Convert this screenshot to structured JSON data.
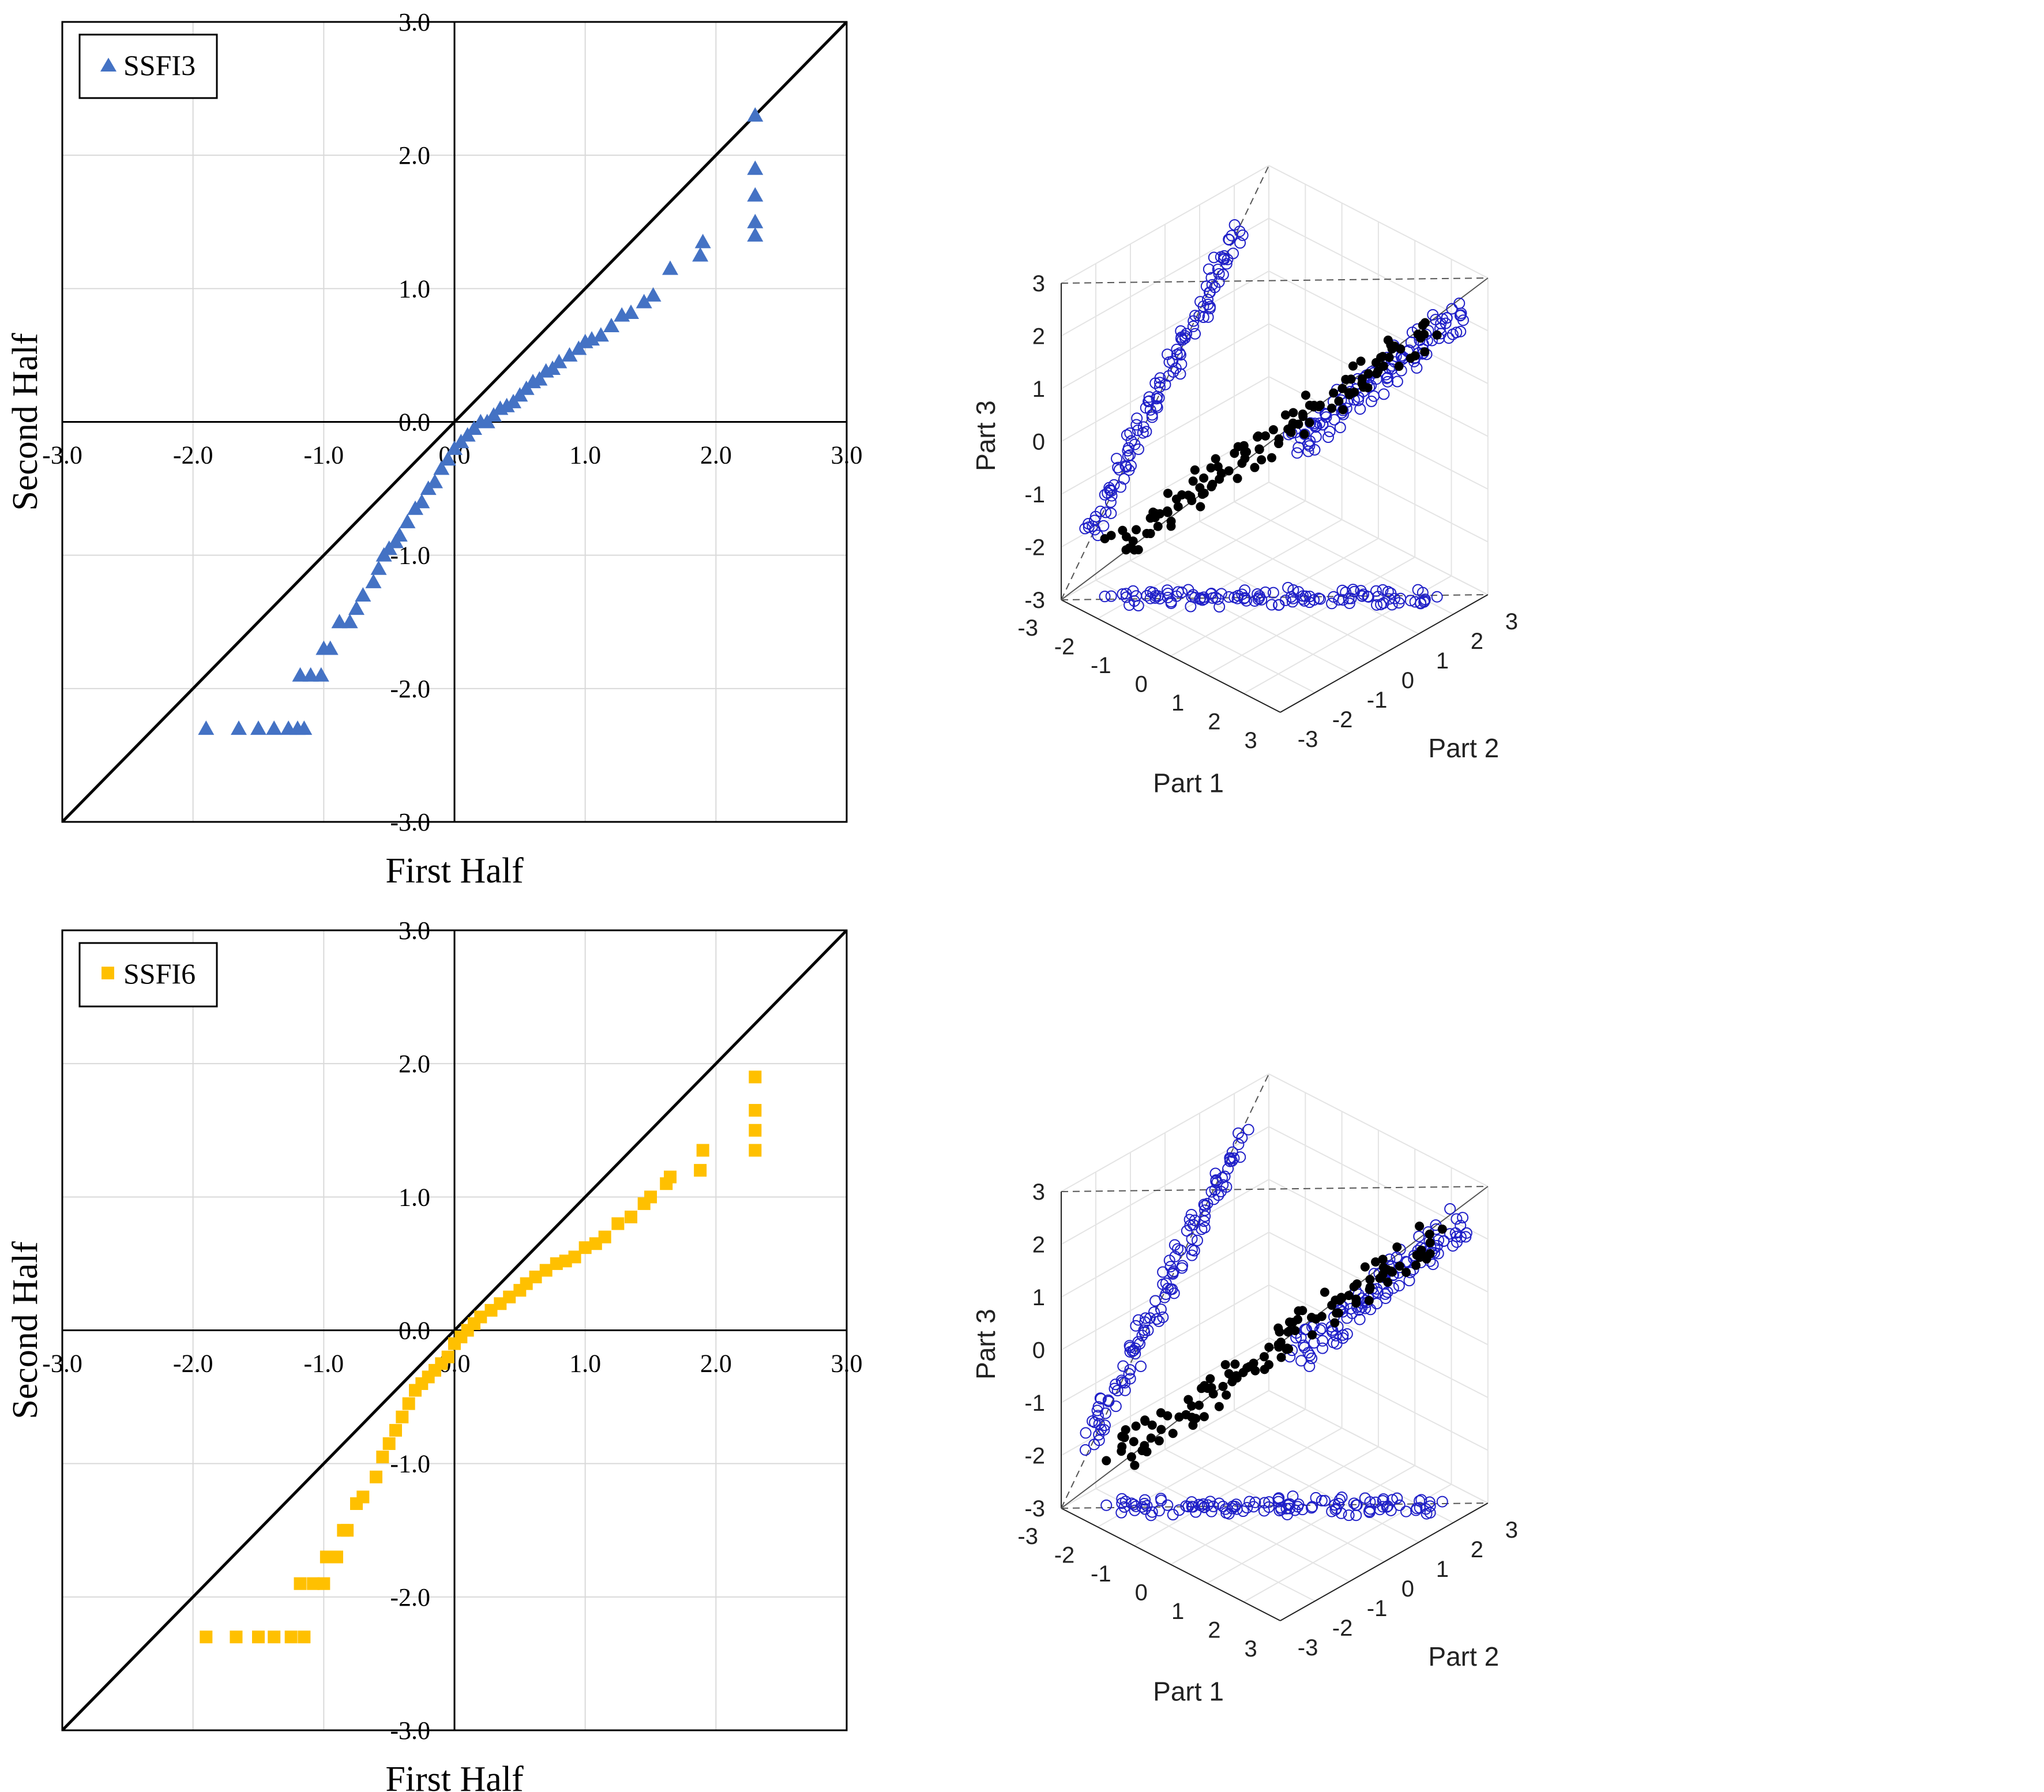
{
  "colors": {
    "ssfi3": "#4472C4",
    "ssfi6": "#FFC000",
    "diagonal": "#000000",
    "grid": "#d9d9d9",
    "circles": "#2020c8",
    "dots": "#000000"
  },
  "chart_data": [
    {
      "type": "scatter",
      "title": "",
      "legend": "SSFI3",
      "legend_position": "top-left",
      "marker": "triangle",
      "xlabel": "First Half",
      "ylabel": "Second Half",
      "xlim": [
        -3.0,
        3.0
      ],
      "ylim": [
        -3.0,
        3.0
      ],
      "xticks": [
        "-3.0",
        "-2.0",
        "-1.0",
        "0.0",
        "1.0",
        "2.0",
        "3.0"
      ],
      "yticks": [
        "3.0",
        "2.0",
        "1.0",
        "0.0",
        "-1.0",
        "-2.0",
        "-3.0"
      ],
      "reference_line": "y = x",
      "x": [
        -1.9,
        -1.65,
        -1.5,
        -1.38,
        -1.27,
        -1.2,
        -1.15,
        -1.18,
        -1.1,
        -1.02,
        -1.0,
        -0.95,
        -0.88,
        -0.8,
        -0.75,
        -0.7,
        -0.62,
        -0.58,
        -0.54,
        -0.5,
        -0.45,
        -0.42,
        -0.36,
        -0.3,
        -0.25,
        -0.2,
        -0.15,
        -0.1,
        -0.05,
        0.0,
        0.05,
        0.1,
        0.15,
        0.2,
        0.25,
        0.3,
        0.35,
        0.4,
        0.45,
        0.5,
        0.55,
        0.6,
        0.65,
        0.7,
        0.75,
        0.8,
        0.88,
        0.95,
        1.0,
        1.05,
        1.12,
        1.2,
        1.28,
        1.35,
        1.45,
        1.52,
        1.65,
        1.88,
        1.9,
        2.3,
        2.3,
        2.3,
        2.3,
        2.3
      ],
      "y": [
        -2.3,
        -2.3,
        -2.3,
        -2.3,
        -2.3,
        -2.3,
        -2.3,
        -1.9,
        -1.9,
        -1.9,
        -1.7,
        -1.7,
        -1.5,
        -1.5,
        -1.4,
        -1.3,
        -1.2,
        -1.1,
        -1.0,
        -0.95,
        -0.9,
        -0.85,
        -0.75,
        -0.65,
        -0.6,
        -0.5,
        -0.45,
        -0.35,
        -0.28,
        -0.2,
        -0.15,
        -0.1,
        -0.05,
        0.0,
        0.0,
        0.05,
        0.1,
        0.12,
        0.15,
        0.2,
        0.25,
        0.3,
        0.32,
        0.38,
        0.4,
        0.45,
        0.5,
        0.55,
        0.6,
        0.62,
        0.65,
        0.72,
        0.8,
        0.82,
        0.9,
        0.95,
        1.15,
        1.25,
        1.35,
        2.3,
        1.9,
        1.7,
        1.5,
        1.4
      ]
    },
    {
      "type": "scatter",
      "title": "",
      "legend": "SSFI6",
      "legend_position": "top-left",
      "marker": "square",
      "xlabel": "First Half",
      "ylabel": "Second Half",
      "xlim": [
        -3.0,
        3.0
      ],
      "ylim": [
        -3.0,
        3.0
      ],
      "xticks": [
        "-3.0",
        "-2.0",
        "-1.0",
        "0.0",
        "1.0",
        "2.0",
        "3.0"
      ],
      "yticks": [
        "3.0",
        "2.0",
        "1.0",
        "0.0",
        "-1.0",
        "-2.0",
        "-3.0"
      ],
      "reference_line": "y = x",
      "x": [
        -1.9,
        -1.67,
        -1.5,
        -1.38,
        -1.25,
        -1.15,
        -1.18,
        -1.08,
        -1.0,
        -0.98,
        -0.9,
        -0.85,
        -0.82,
        -0.75,
        -0.7,
        -0.6,
        -0.55,
        -0.5,
        -0.45,
        -0.4,
        -0.35,
        -0.3,
        -0.25,
        -0.2,
        -0.15,
        -0.1,
        -0.05,
        0.0,
        0.05,
        0.1,
        0.15,
        0.2,
        0.28,
        0.35,
        0.42,
        0.5,
        0.55,
        0.62,
        0.7,
        0.78,
        0.85,
        0.92,
        1.0,
        1.08,
        1.15,
        1.25,
        1.35,
        1.45,
        1.5,
        1.62,
        1.65,
        1.88,
        1.9,
        2.3,
        2.3,
        2.3,
        2.3
      ],
      "y": [
        -2.3,
        -2.3,
        -2.3,
        -2.3,
        -2.3,
        -2.3,
        -1.9,
        -1.9,
        -1.9,
        -1.7,
        -1.7,
        -1.5,
        -1.5,
        -1.3,
        -1.25,
        -1.1,
        -0.95,
        -0.85,
        -0.75,
        -0.65,
        -0.55,
        -0.45,
        -0.4,
        -0.35,
        -0.3,
        -0.25,
        -0.2,
        -0.1,
        -0.05,
        0.0,
        0.05,
        0.1,
        0.15,
        0.2,
        0.25,
        0.3,
        0.35,
        0.4,
        0.45,
        0.5,
        0.52,
        0.55,
        0.62,
        0.65,
        0.7,
        0.8,
        0.85,
        0.95,
        1.0,
        1.1,
        1.15,
        1.2,
        1.35,
        1.9,
        1.65,
        1.5,
        1.35
      ]
    },
    {
      "type": "scatter",
      "subtype": "3d-scatter-with-projections",
      "title": "",
      "xlabel": "Part 1",
      "ylabel": "Part 2",
      "zlabel": "Part 3",
      "xlim": [
        -3,
        3
      ],
      "ylim": [
        -3,
        3
      ],
      "zlim": [
        -3,
        3
      ],
      "xticks": [
        "-3",
        "-2",
        "-1",
        "0",
        "1",
        "2",
        "3"
      ],
      "yticks": [
        "-3",
        "-2",
        "-1",
        "0",
        "1",
        "2",
        "3"
      ],
      "zticks": [
        "3",
        "2",
        "1",
        "0",
        "-1",
        "-2",
        "-3"
      ],
      "note": "filled dots = 3-D data points; open circles = projections onto the three back walls; dashed line = diagonal reference"
    },
    {
      "type": "scatter",
      "subtype": "3d-scatter-with-projections",
      "title": "",
      "xlabel": "Part 1",
      "ylabel": "Part 2",
      "zlabel": "Part 3",
      "xlim": [
        -3,
        3
      ],
      "ylim": [
        -3,
        3
      ],
      "zlim": [
        -3,
        3
      ],
      "xticks": [
        "-3",
        "-2",
        "-1",
        "0",
        "1",
        "2",
        "3"
      ],
      "yticks": [
        "-3",
        "-2",
        "-1",
        "0",
        "1",
        "2",
        "3"
      ],
      "zticks": [
        "3",
        "2",
        "1",
        "0",
        "-1",
        "-2",
        "-3"
      ],
      "note": "filled dots = 3-D data points; open circles = projections onto the three back walls; dashed line = diagonal reference"
    }
  ]
}
